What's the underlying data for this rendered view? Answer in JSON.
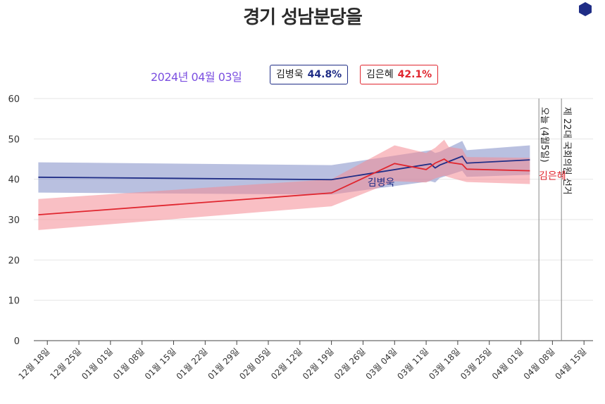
{
  "title": "경기 성남분당을",
  "date_label": "2024년 04월 03일",
  "legend": [
    {
      "name": "김병욱",
      "value": "44.8%",
      "color": "#1f2d86"
    },
    {
      "name": "김은혜",
      "value": "42.1%",
      "color": "#e0262f"
    }
  ],
  "colors": {
    "hex_icon": "#1f2d86"
  },
  "chart_data": {
    "type": "line",
    "title": "경기 성남분당을",
    "xlabel": "",
    "ylabel": "",
    "ylim": [
      0,
      60
    ],
    "y_ticks": [
      0,
      10,
      20,
      30,
      40,
      50,
      60
    ],
    "x_range": [
      "2023-12-15",
      "2024-04-17"
    ],
    "x_ticks": [
      {
        "date": "2023-12-18",
        "label": "12월 18일"
      },
      {
        "date": "2023-12-25",
        "label": "12월 25일"
      },
      {
        "date": "2024-01-01",
        "label": "01월 01일"
      },
      {
        "date": "2024-01-08",
        "label": "01월 08일"
      },
      {
        "date": "2024-01-15",
        "label": "01월 15일"
      },
      {
        "date": "2024-01-22",
        "label": "01월 22일"
      },
      {
        "date": "2024-01-29",
        "label": "01월 29일"
      },
      {
        "date": "2024-02-05",
        "label": "02월 05일"
      },
      {
        "date": "2024-02-12",
        "label": "02월 12일"
      },
      {
        "date": "2024-02-19",
        "label": "02월 19일"
      },
      {
        "date": "2024-02-26",
        "label": "02월 26일"
      },
      {
        "date": "2024-03-04",
        "label": "03월 04일"
      },
      {
        "date": "2024-03-11",
        "label": "03월 11일"
      },
      {
        "date": "2024-03-18",
        "label": "03월 18일"
      },
      {
        "date": "2024-03-25",
        "label": "03월 25일"
      },
      {
        "date": "2024-04-01",
        "label": "04월 01일"
      },
      {
        "date": "2024-04-08",
        "label": "04월 08일"
      },
      {
        "date": "2024-04-15",
        "label": "04월 15일"
      }
    ],
    "grid": true,
    "series": [
      {
        "name": "김병욱",
        "color": "#1f2d86",
        "band_color": "#7f8dc6",
        "x": [
          "2023-12-16",
          "2024-02-19",
          "2024-03-12",
          "2024-03-13",
          "2024-03-14",
          "2024-03-19",
          "2024-03-20",
          "2024-04-03"
        ],
        "values": [
          40.5,
          39.9,
          43.8,
          42.8,
          43.5,
          45.7,
          44.0,
          44.8
        ],
        "upper": [
          44.2,
          43.5,
          47.2,
          46.5,
          46.8,
          49.5,
          47.2,
          48.4
        ],
        "lower": [
          36.7,
          36.2,
          39.5,
          39.2,
          40.3,
          42.1,
          40.6,
          41.1
        ]
      },
      {
        "name": "김은혜",
        "color": "#e0262f",
        "band_color": "#f48a93",
        "x": [
          "2023-12-16",
          "2024-02-19",
          "2024-03-04",
          "2024-03-11",
          "2024-03-13",
          "2024-03-15",
          "2024-03-16",
          "2024-03-19",
          "2024-03-20",
          "2024-04-03"
        ],
        "values": [
          31.2,
          36.6,
          43.9,
          42.4,
          44.0,
          45.0,
          44.2,
          43.7,
          42.5,
          42.1
        ],
        "upper": [
          35.1,
          40.0,
          48.4,
          46.5,
          47.8,
          49.8,
          48.0,
          47.5,
          45.5,
          45.3
        ],
        "lower": [
          27.4,
          33.3,
          39.5,
          39.2,
          40.2,
          40.9,
          40.5,
          39.6,
          39.3,
          38.8
        ]
      }
    ],
    "series_labels": [
      {
        "text": "김병욱",
        "color": "#1f2d86",
        "date": "2024-03-01",
        "y": 38.4
      },
      {
        "text": "김은혜",
        "color": "#e0262f",
        "date": "2024-04-08",
        "y": 40.0
      }
    ],
    "vertical_markers": [
      {
        "date": "2024-04-05",
        "label": "오늘 (4월5일)"
      },
      {
        "date": "2024-04-10",
        "label": "제 22대 국회의원 선거"
      }
    ]
  }
}
